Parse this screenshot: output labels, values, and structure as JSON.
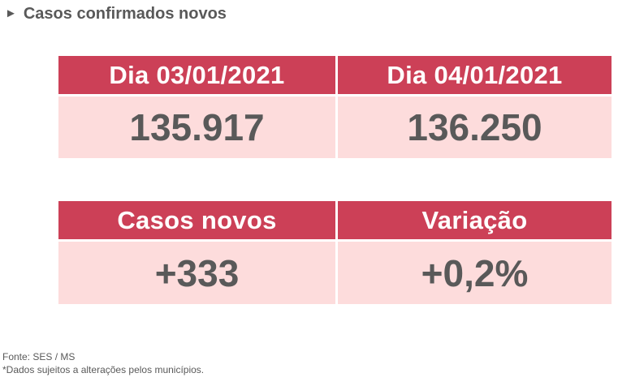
{
  "title": {
    "icon": "triangle-right-icon",
    "text": "Casos confirmados novos"
  },
  "top_table": {
    "headers": [
      "Dia 03/01/2021",
      "Dia 04/01/2021"
    ],
    "values": [
      "135.917",
      "136.250"
    ]
  },
  "bottom_table": {
    "headers": [
      "Casos novos",
      "Variação"
    ],
    "values": [
      "+333",
      "+0,2%"
    ]
  },
  "footer": {
    "source": "Fonte: SES / MS",
    "note": "*Dados sujeitos a alterações pelos municípios."
  },
  "colors": {
    "header_bg": "#cc4057",
    "cell_bg": "#fddcdc",
    "text": "#595959"
  }
}
